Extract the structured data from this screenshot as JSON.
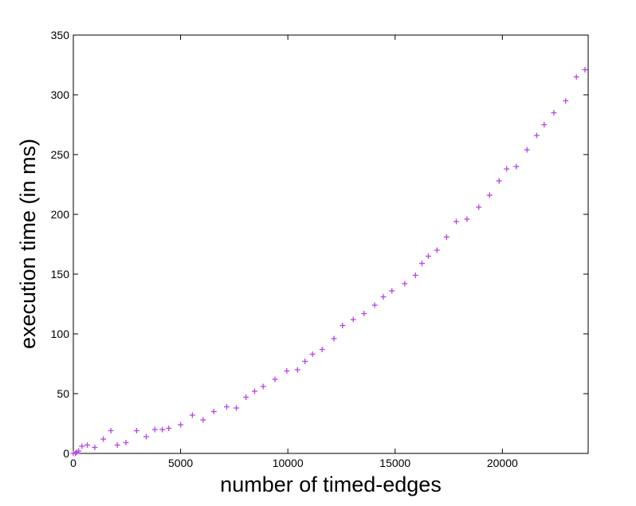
{
  "chart_data": {
    "type": "scatter",
    "marker": "+",
    "color": "#b645e6",
    "xlabel": "number of timed-edges",
    "ylabel": "execution time (in ms)",
    "xlim": [
      0,
      24000
    ],
    "ylim": [
      0,
      350
    ],
    "xticks": [
      "0",
      "5000",
      "10000",
      "15000",
      "20000"
    ],
    "xtick_values": [
      0,
      5000,
      10000,
      15000,
      20000
    ],
    "yticks": [
      "0",
      "50",
      "100",
      "150",
      "200",
      "250",
      "300",
      "350"
    ],
    "ytick_values": [
      0,
      50,
      100,
      150,
      200,
      250,
      300,
      350
    ],
    "grid": false,
    "points": [
      [
        0,
        0
      ],
      [
        100,
        0
      ],
      [
        150,
        1
      ],
      [
        250,
        2
      ],
      [
        400,
        6
      ],
      [
        650,
        7
      ],
      [
        1000,
        5
      ],
      [
        1400,
        12
      ],
      [
        1750,
        19
      ],
      [
        2050,
        7
      ],
      [
        2450,
        9
      ],
      [
        2950,
        19
      ],
      [
        3400,
        14
      ],
      [
        3800,
        20
      ],
      [
        4150,
        20
      ],
      [
        4450,
        21
      ],
      [
        5000,
        24
      ],
      [
        5550,
        32
      ],
      [
        6050,
        28
      ],
      [
        6550,
        35
      ],
      [
        7150,
        39
      ],
      [
        7600,
        38
      ],
      [
        8050,
        47
      ],
      [
        8450,
        52
      ],
      [
        8850,
        56
      ],
      [
        9400,
        62
      ],
      [
        9950,
        69
      ],
      [
        10450,
        70
      ],
      [
        10800,
        77
      ],
      [
        11150,
        83
      ],
      [
        11600,
        87
      ],
      [
        12150,
        96
      ],
      [
        12550,
        107
      ],
      [
        13050,
        112
      ],
      [
        13550,
        117
      ],
      [
        14050,
        124
      ],
      [
        14450,
        131
      ],
      [
        14850,
        136
      ],
      [
        15450,
        142
      ],
      [
        15950,
        149
      ],
      [
        16250,
        159
      ],
      [
        16550,
        165
      ],
      [
        16950,
        170
      ],
      [
        17400,
        181
      ],
      [
        17850,
        194
      ],
      [
        18350,
        196
      ],
      [
        18900,
        206
      ],
      [
        19400,
        216
      ],
      [
        19850,
        228
      ],
      [
        20200,
        238
      ],
      [
        20650,
        240
      ],
      [
        21150,
        254
      ],
      [
        21600,
        266
      ],
      [
        21950,
        275
      ],
      [
        22400,
        285
      ],
      [
        22950,
        295
      ],
      [
        23450,
        315
      ],
      [
        23850,
        321
      ]
    ]
  }
}
